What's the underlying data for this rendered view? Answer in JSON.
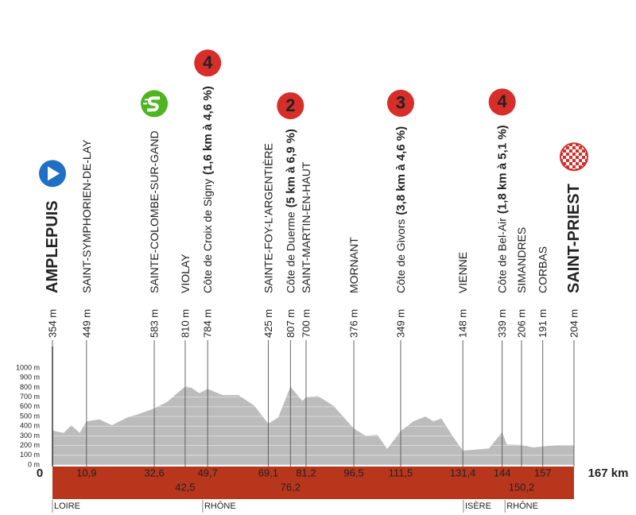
{
  "chart_data": {
    "type": "area",
    "x": [
      0,
      3.6,
      6,
      8.7,
      10.9,
      15,
      19,
      24,
      28,
      32.6,
      36.7,
      42.5,
      44.3,
      47,
      49.7,
      54.5,
      59.6,
      64.7,
      69.1,
      72.3,
      76.2,
      80,
      81.2,
      85,
      90,
      96.5,
      100.3,
      104,
      107.2,
      111.5,
      115.6,
      119.4,
      122,
      124.5,
      128.3,
      131.4,
      136,
      139.8,
      144,
      145.5,
      150.2,
      154,
      157,
      161.5,
      167
    ],
    "values": [
      354,
      330,
      410,
      330,
      449,
      470,
      410,
      490,
      530,
      583,
      650,
      810,
      800,
      740,
      784,
      720,
      720,
      610,
      425,
      490,
      807,
      660,
      700,
      710,
      610,
      376,
      300,
      310,
      165,
      349,
      450,
      500,
      450,
      480,
      290,
      148,
      160,
      170,
      339,
      210,
      206,
      180,
      191,
      205,
      204
    ],
    "color": "#bcbcbc",
    "xlim": [
      0,
      167
    ],
    "ylim": [
      0,
      1000
    ],
    "yticks": [
      {
        "value": 0,
        "label": "0 m"
      },
      {
        "value": 100,
        "label": "100 m"
      },
      {
        "value": 200,
        "label": "200 m"
      },
      {
        "value": 300,
        "label": "300 m"
      },
      {
        "value": 400,
        "label": "400 m"
      },
      {
        "value": 500,
        "label": "500 m"
      },
      {
        "value": 600,
        "label": "600 m"
      },
      {
        "value": 700,
        "label": "700 m"
      },
      {
        "value": 800,
        "label": "800 m"
      },
      {
        "value": 900,
        "label": "900 m"
      },
      {
        "value": 1000,
        "label": "1000 m"
      }
    ],
    "grid": true,
    "waypoints": [
      {
        "km": 0,
        "km_label": "0",
        "altitude": "354 m",
        "name": "AMPLEPUIS",
        "icon": "start"
      },
      {
        "km": 10.9,
        "km_label": "10,9",
        "altitude": "449 m",
        "name": "SAINT-SYMPHORIEN-DE-LAY"
      },
      {
        "km": 32.6,
        "km_label": "32,6",
        "altitude": "583 m",
        "name": "SAINTE-COLOMBE-SUR-GAND",
        "icon": "sprint"
      },
      {
        "km": 42.5,
        "km_label": "42,5",
        "altitude": "810 m",
        "name": "VIOLAY"
      },
      {
        "km": 49.7,
        "km_label": "49,7",
        "altitude": "784 m",
        "name": "Côte de Croix de Signy",
        "detail": "(1,6 km à 4,6 %)",
        "category": 4
      },
      {
        "km": 69.1,
        "km_label": "69,1",
        "altitude": "425 m",
        "name": "SAINTE-FOY-L'ARGENTIÈRE"
      },
      {
        "km": 76.2,
        "km_label": "76,2",
        "altitude": "807 m",
        "name": "Côte de Duerme",
        "detail": "(5 km à 6,9 %)",
        "category": 2
      },
      {
        "km": 81.2,
        "km_label": "81,2",
        "altitude": "700 m",
        "name": "SAINT-MARTIN-EN-HAUT"
      },
      {
        "km": 96.5,
        "km_label": "96,5",
        "altitude": "376 m",
        "name": "MORNANT"
      },
      {
        "km": 111.5,
        "km_label": "111,5",
        "altitude": "349 m",
        "name": "Côte de Givors",
        "detail": "(3,8 km à 4,6 %)",
        "category": 3
      },
      {
        "km": 131.4,
        "km_label": "131,4",
        "altitude": "148 m",
        "name": "VIENNE"
      },
      {
        "km": 144,
        "km_label": "144",
        "altitude": "339 m",
        "name": "Côte de Bel-Air",
        "detail": "(1,8 km à 5,1 %)",
        "category": 4
      },
      {
        "km": 150.2,
        "km_label": "150,2",
        "altitude": "206 m",
        "name": "SIMANDRES"
      },
      {
        "km": 157,
        "km_label": "157",
        "altitude": "191 m",
        "name": "CORBAS"
      },
      {
        "km": 167,
        "km_label": "167 km",
        "altitude": "204 m",
        "name": "SAINT-PRIEST",
        "icon": "finish"
      }
    ],
    "regions": [
      {
        "name": "LOIRE",
        "km": 0
      },
      {
        "name": "RHÔNE",
        "km": 48.1
      },
      {
        "name": "ISÈRE",
        "km": 131.6
      },
      {
        "name": "RHÔNE",
        "km": 144.9
      }
    ]
  }
}
